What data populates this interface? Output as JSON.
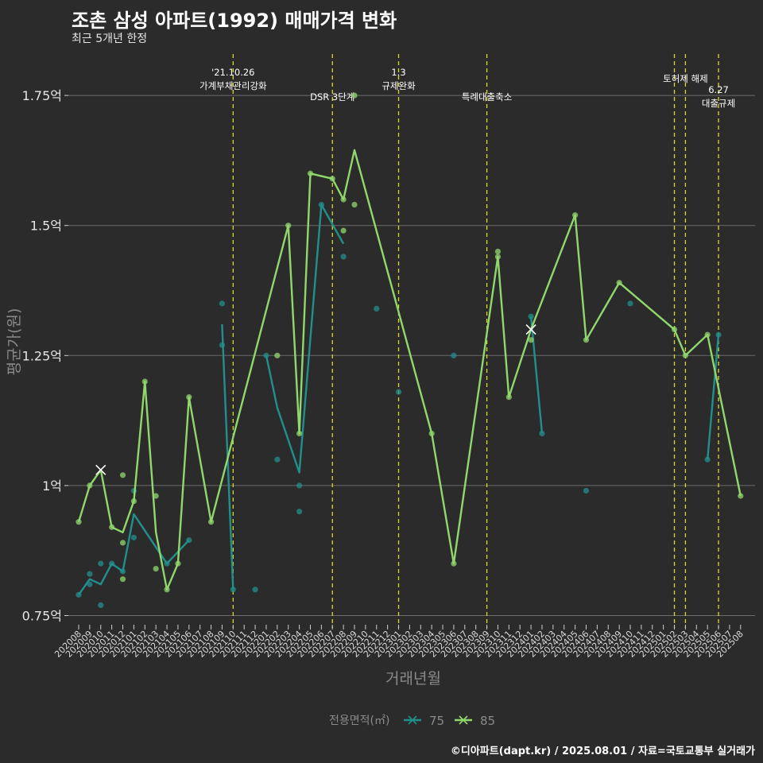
{
  "title": "조촌 삼성 아파트(1992) 매매가격 변화",
  "subtitle": "최근 5개년 한정",
  "caption": "©디아파트(dapt.kr) / 2025.08.01 / 자료=국토교통부 실거래가",
  "colors": {
    "background": "#2b2b2b",
    "grid": "#6b6b6b",
    "series_75": "#21908c",
    "series_85": "#90d86c",
    "event_line": "#d9d92a",
    "axis_text": "#cfcfcf"
  },
  "chart_data": {
    "type": "line",
    "title": "조촌 삼성 아파트(1992) 매매가격 변화",
    "subtitle": "최근 5개년 한정",
    "xlabel": "거래년월",
    "ylabel": "평균가(원)",
    "ylim": [
      0.73,
      1.83
    ],
    "y_ticks": [
      0.75,
      1.0,
      1.25,
      1.5,
      1.75
    ],
    "y_tick_labels": [
      "0.75억",
      "1억",
      "1.25억",
      "1.5억",
      "1.75억"
    ],
    "x_categories": [
      "202008",
      "202009",
      "202010",
      "202011",
      "202012",
      "202101",
      "202102",
      "202103",
      "202104",
      "202105",
      "202106",
      "202107",
      "202108",
      "202109",
      "202110",
      "202111",
      "202112",
      "202201",
      "202202",
      "202203",
      "202204",
      "202205",
      "202206",
      "202207",
      "202208",
      "202209",
      "202210",
      "202211",
      "202212",
      "202301",
      "202302",
      "202303",
      "202304",
      "202305",
      "202306",
      "202307",
      "202308",
      "202309",
      "202310",
      "202311",
      "202312",
      "202401",
      "202402",
      "202403",
      "202404",
      "202405",
      "202406",
      "202407",
      "202408",
      "202409",
      "202410",
      "202411",
      "202412",
      "202501",
      "202502",
      "202503",
      "202504",
      "202505",
      "202506",
      "202507",
      "202508"
    ],
    "grid": true,
    "legend": {
      "title": "전용면적(㎡)",
      "position": "bottom",
      "entries": [
        "75",
        "85"
      ]
    },
    "series": [
      {
        "name": "75",
        "line": [
          {
            "x": 0,
            "y": 0.79
          },
          {
            "x": 1,
            "y": 0.82
          },
          {
            "x": 2,
            "y": 0.81
          },
          {
            "x": 3,
            "y": 0.85
          },
          {
            "x": 4,
            "y": 0.835
          },
          {
            "x": 5,
            "y": 0.945
          },
          {
            "x": 8,
            "y": 0.85
          },
          {
            "x": 10,
            "y": 0.895
          }
        ],
        "line2": [
          {
            "x": 13,
            "y": 1.31
          },
          {
            "x": 14,
            "y": 0.8
          }
        ],
        "line3": [
          {
            "x": 17,
            "y": 1.25
          },
          {
            "x": 18,
            "y": 1.15
          },
          {
            "x": 20,
            "y": 1.025
          },
          {
            "x": 22,
            "y": 1.54
          },
          {
            "x": 24,
            "y": 1.465
          }
        ],
        "line4": [
          {
            "x": 41,
            "y": 1.325
          },
          {
            "x": 42,
            "y": 1.1
          }
        ],
        "line5": [
          {
            "x": 57,
            "y": 1.05
          },
          {
            "x": 58,
            "y": 1.29
          }
        ],
        "points": [
          {
            "x": 0,
            "y": 0.79
          },
          {
            "x": 1,
            "y": 0.81
          },
          {
            "x": 1,
            "y": 0.83
          },
          {
            "x": 2,
            "y": 0.77
          },
          {
            "x": 2,
            "y": 0.85
          },
          {
            "x": 3,
            "y": 0.85
          },
          {
            "x": 4,
            "y": 0.835
          },
          {
            "x": 5,
            "y": 0.9
          },
          {
            "x": 5,
            "y": 0.99
          },
          {
            "x": 8,
            "y": 0.85
          },
          {
            "x": 10,
            "y": 0.895
          },
          {
            "x": 13,
            "y": 1.35
          },
          {
            "x": 13,
            "y": 1.27
          },
          {
            "x": 14,
            "y": 0.8
          },
          {
            "x": 16,
            "y": 0.8
          },
          {
            "x": 17,
            "y": 1.25
          },
          {
            "x": 18,
            "y": 1.05
          },
          {
            "x": 20,
            "y": 0.95
          },
          {
            "x": 20,
            "y": 1.0
          },
          {
            "x": 22,
            "y": 1.54
          },
          {
            "x": 24,
            "y": 1.44
          },
          {
            "x": 27,
            "y": 1.34
          },
          {
            "x": 29,
            "y": 1.18
          },
          {
            "x": 34,
            "y": 1.25
          },
          {
            "x": 41,
            "y": 1.325
          },
          {
            "x": 42,
            "y": 1.1
          },
          {
            "x": 46,
            "y": 0.99
          },
          {
            "x": 50,
            "y": 1.35
          },
          {
            "x": 57,
            "y": 1.05
          },
          {
            "x": 58,
            "y": 1.29
          }
        ]
      },
      {
        "name": "85",
        "line": [
          {
            "x": 0,
            "y": 0.93
          },
          {
            "x": 1,
            "y": 1.0
          },
          {
            "x": 2,
            "y": 1.03
          },
          {
            "x": 3,
            "y": 0.92
          },
          {
            "x": 4,
            "y": 0.91
          },
          {
            "x": 5,
            "y": 0.97
          },
          {
            "x": 6,
            "y": 1.2
          },
          {
            "x": 7,
            "y": 0.91
          },
          {
            "x": 8,
            "y": 0.8
          },
          {
            "x": 9,
            "y": 0.85
          },
          {
            "x": 10,
            "y": 1.17
          },
          {
            "x": 12,
            "y": 0.93
          },
          {
            "x": 19,
            "y": 1.5
          },
          {
            "x": 20,
            "y": 1.1
          },
          {
            "x": 21,
            "y": 1.6
          },
          {
            "x": 23,
            "y": 1.59
          },
          {
            "x": 24,
            "y": 1.55
          },
          {
            "x": 25,
            "y": 1.645
          },
          {
            "x": 32,
            "y": 1.1
          },
          {
            "x": 34,
            "y": 0.85
          },
          {
            "x": 38,
            "y": 1.44
          },
          {
            "x": 39,
            "y": 1.17
          },
          {
            "x": 41,
            "y": 1.3
          },
          {
            "x": 45,
            "y": 1.52
          },
          {
            "x": 46,
            "y": 1.28
          },
          {
            "x": 49,
            "y": 1.39
          },
          {
            "x": 54,
            "y": 1.3
          },
          {
            "x": 55,
            "y": 1.25
          },
          {
            "x": 57,
            "y": 1.29
          },
          {
            "x": 60,
            "y": 0.98
          }
        ],
        "points": [
          {
            "x": 0,
            "y": 0.93
          },
          {
            "x": 1,
            "y": 1.0
          },
          {
            "x": 3,
            "y": 0.92
          },
          {
            "x": 4,
            "y": 0.82
          },
          {
            "x": 4,
            "y": 0.89
          },
          {
            "x": 4,
            "y": 1.02
          },
          {
            "x": 5,
            "y": 0.97
          },
          {
            "x": 6,
            "y": 1.2
          },
          {
            "x": 7,
            "y": 0.84
          },
          {
            "x": 7,
            "y": 0.98
          },
          {
            "x": 8,
            "y": 0.8
          },
          {
            "x": 9,
            "y": 0.85
          },
          {
            "x": 10,
            "y": 1.17
          },
          {
            "x": 12,
            "y": 0.93
          },
          {
            "x": 18,
            "y": 1.25
          },
          {
            "x": 19,
            "y": 1.5
          },
          {
            "x": 20,
            "y": 1.1
          },
          {
            "x": 21,
            "y": 1.6
          },
          {
            "x": 23,
            "y": 1.59
          },
          {
            "x": 24,
            "y": 1.55
          },
          {
            "x": 24,
            "y": 1.49
          },
          {
            "x": 25,
            "y": 1.54
          },
          {
            "x": 25,
            "y": 1.75
          },
          {
            "x": 32,
            "y": 1.1
          },
          {
            "x": 34,
            "y": 0.85
          },
          {
            "x": 38,
            "y": 1.45
          },
          {
            "x": 38,
            "y": 1.44
          },
          {
            "x": 39,
            "y": 1.17
          },
          {
            "x": 41,
            "y": 1.28
          },
          {
            "x": 45,
            "y": 1.52
          },
          {
            "x": 46,
            "y": 1.28
          },
          {
            "x": 49,
            "y": 1.39
          },
          {
            "x": 54,
            "y": 1.3
          },
          {
            "x": 55,
            "y": 1.25
          },
          {
            "x": 57,
            "y": 1.29
          },
          {
            "x": 60,
            "y": 0.98
          }
        ],
        "cross_markers": [
          {
            "x": 2,
            "y": 1.03
          },
          {
            "x": 41,
            "y": 1.3
          }
        ]
      }
    ],
    "annotations": [
      {
        "x": 14,
        "lines": [
          "'21.10.26",
          "가계부채관리강화"
        ],
        "level": 0
      },
      {
        "x": 23,
        "lines": [
          "DSR 3단계"
        ],
        "level": 1
      },
      {
        "x": 29,
        "lines": [
          "1.3",
          "규제완화"
        ],
        "level": 0
      },
      {
        "x": 37,
        "lines": [
          "특례대출축소"
        ],
        "level": 1
      },
      {
        "x": 54,
        "lines": [
          ""
        ],
        "level": 0
      },
      {
        "x": 55,
        "lines": [
          "토허제 해제"
        ],
        "level": 0
      },
      {
        "x": 58,
        "lines": [
          "6.27",
          "대출규제"
        ],
        "level": 2
      }
    ]
  }
}
